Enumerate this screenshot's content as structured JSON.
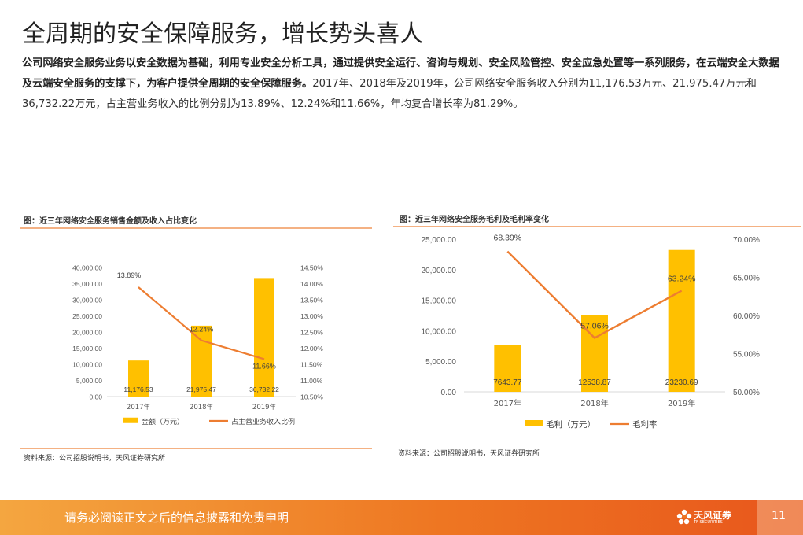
{
  "page": {
    "title": "全周期的安全保障服务，增长势头喜人",
    "intro_bold": "公司网络安全服务业务以安全数据为基础，利用专业安全分析工具，通过提供安全运行、咨询与规划、安全风险管控、安全应急处置等一系列服务，在云端安全大数据及云端安全服务的支撑下，为客户提供全周期的安全保障服务。",
    "intro_rest": "2017年、2018年及2019年，公司网络安全服务收入分别为11,176.53万元、21,975.47万元和36,732.22万元，占主营业务收入的比例分别为13.89%、12.24%和11.66%，年均复合增长率为81.29%。"
  },
  "footer": {
    "disclaimer": "请务必阅读正文之后的信息披露和免责申明",
    "logo_text": "天风证券",
    "logo_sub": "TF SECURITIES",
    "page_number": "11"
  },
  "colors": {
    "bar": "#FFC000",
    "line": "#ED7D31",
    "accent_rule": "#F4B183",
    "footer_start": "#F4A640",
    "footer_end": "#E8561C"
  },
  "chart_data": [
    {
      "type": "bar",
      "title": "图：近三年网络安全服务销售金额及收入占比变化",
      "categories": [
        "2017年",
        "2018年",
        "2019年"
      ],
      "series": [
        {
          "name": "金额（万元）",
          "type": "bar",
          "axis": "left",
          "values": [
            11176.53,
            21975.47,
            36732.22
          ],
          "labels": [
            "11,176.53",
            "21,975.47",
            "36,732.22"
          ]
        },
        {
          "name": "占主营业务收入比例",
          "type": "line",
          "axis": "right",
          "values": [
            13.89,
            12.24,
            11.66
          ],
          "labels": [
            "13.89%",
            "12.24%",
            "11.66%"
          ]
        }
      ],
      "y_left": {
        "min": 0,
        "max": 40000,
        "ticks": [
          "0.00",
          "5,000.00",
          "10,000.00",
          "15,000.00",
          "20,000.00",
          "25,000.00",
          "30,000.00",
          "35,000.00",
          "40,000.00"
        ]
      },
      "y_right": {
        "min": 10.5,
        "max": 14.5,
        "ticks": [
          "10.50%",
          "11.00%",
          "11.50%",
          "12.00%",
          "12.50%",
          "13.00%",
          "13.50%",
          "14.00%",
          "14.50%"
        ]
      },
      "legend": "bottom",
      "grid": false,
      "source": "资料来源：公司招股说明书，天风证券研究所"
    },
    {
      "type": "bar",
      "title": "图：近三年网络安全服务毛利及毛利率变化",
      "categories": [
        "2017年",
        "2018年",
        "2019年"
      ],
      "series": [
        {
          "name": "毛利（万元）",
          "type": "bar",
          "axis": "left",
          "values": [
            7643.77,
            12538.87,
            23230.69
          ],
          "labels": [
            "7643.77",
            "12538.87",
            "23230.69"
          ]
        },
        {
          "name": "毛利率",
          "type": "line",
          "axis": "right",
          "values": [
            68.39,
            57.06,
            63.24
          ],
          "labels": [
            "68.39%",
            "57.06%",
            "63.24%"
          ]
        }
      ],
      "y_left": {
        "min": 0,
        "max": 25000,
        "ticks": [
          "0.00",
          "5,000.00",
          "10,000.00",
          "15,000.00",
          "20,000.00",
          "25,000.00"
        ]
      },
      "y_right": {
        "min": 50,
        "max": 70,
        "ticks": [
          "50.00%",
          "55.00%",
          "60.00%",
          "65.00%",
          "70.00%"
        ]
      },
      "legend": "bottom",
      "grid": false,
      "source": "资料来源：公司招股说明书，天风证券研究所"
    }
  ]
}
